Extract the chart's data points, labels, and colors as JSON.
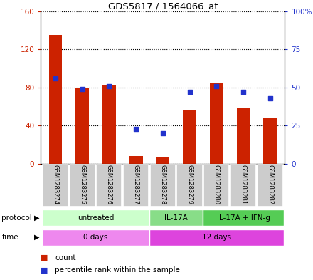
{
  "title": "GDS5817 / 1564066_at",
  "samples": [
    "GSM1283274",
    "GSM1283275",
    "GSM1283276",
    "GSM1283277",
    "GSM1283278",
    "GSM1283279",
    "GSM1283280",
    "GSM1283281",
    "GSM1283282"
  ],
  "counts": [
    135,
    80,
    83,
    8,
    7,
    57,
    85,
    58,
    48
  ],
  "percentiles": [
    56,
    49,
    51,
    23,
    20,
    47,
    51,
    47,
    43
  ],
  "ylim_left": [
    0,
    160
  ],
  "ylim_right": [
    0,
    100
  ],
  "yticks_left": [
    0,
    40,
    80,
    120,
    160
  ],
  "yticks_right": [
    0,
    25,
    50,
    75,
    100
  ],
  "yticklabels_right": [
    "0",
    "25",
    "50",
    "75",
    "100%"
  ],
  "bar_color": "#cc2200",
  "dot_color": "#2233cc",
  "protocol_groups": [
    {
      "label": "untreated",
      "start": 0,
      "end": 4,
      "color": "#ccffcc"
    },
    {
      "label": "IL-17A",
      "start": 4,
      "end": 6,
      "color": "#88dd88"
    },
    {
      "label": "IL-17A + IFN-g",
      "start": 6,
      "end": 9,
      "color": "#55cc55"
    }
  ],
  "time_groups": [
    {
      "label": "0 days",
      "start": 0,
      "end": 4,
      "color": "#ee88ee"
    },
    {
      "label": "12 days",
      "start": 4,
      "end": 9,
      "color": "#dd44dd"
    }
  ],
  "protocol_label": "protocol",
  "time_label": "time",
  "legend_count_label": "count",
  "legend_percentile_label": "percentile rank within the sample",
  "sample_box_color": "#cccccc",
  "bar_width": 0.5,
  "fig_width": 4.4,
  "fig_height": 3.93,
  "dpi": 100
}
